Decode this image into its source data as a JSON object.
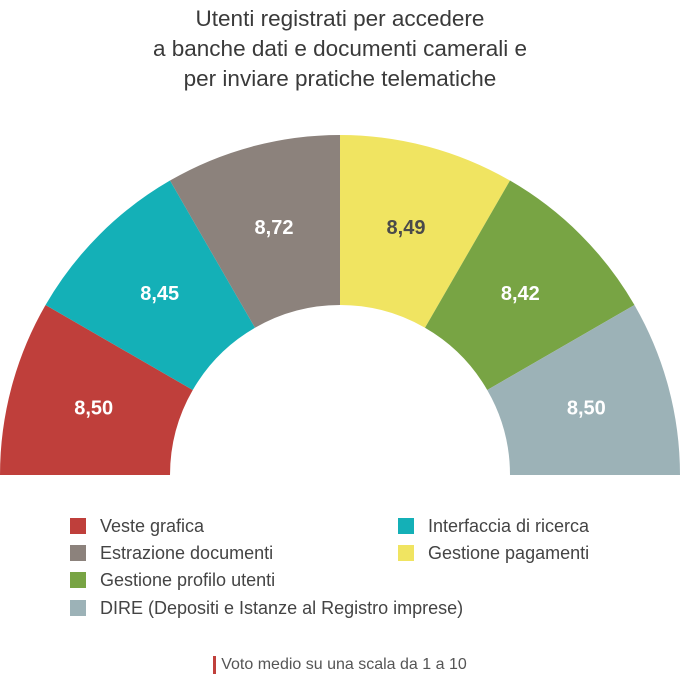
{
  "title_lines": [
    "Utenti registrati per accedere",
    "a banche dati e documenti camerali e",
    "per inviare pratiche telematiche"
  ],
  "chart_data": {
    "type": "pie",
    "variant": "semicircle-donut",
    "categories": [
      "Veste grafica",
      "Interfaccia di ricerca",
      "Estrazione documenti",
      "Gestione pagamenti",
      "Gestione profilo utenti",
      "DIRE (Depositi e Istanze al Registro imprese)"
    ],
    "values": [
      8.5,
      8.45,
      8.72,
      8.49,
      8.42,
      8.5
    ],
    "labels": [
      "8,50",
      "8,45",
      "8,72",
      "8,49",
      "8,42",
      "8,50"
    ],
    "colors": [
      "#bf3f3b",
      "#14b0b7",
      "#8c827c",
      "#f0e461",
      "#78a444",
      "#9cb2b7"
    ]
  },
  "footnote": "Voto medio su una scala da 1 a 10"
}
